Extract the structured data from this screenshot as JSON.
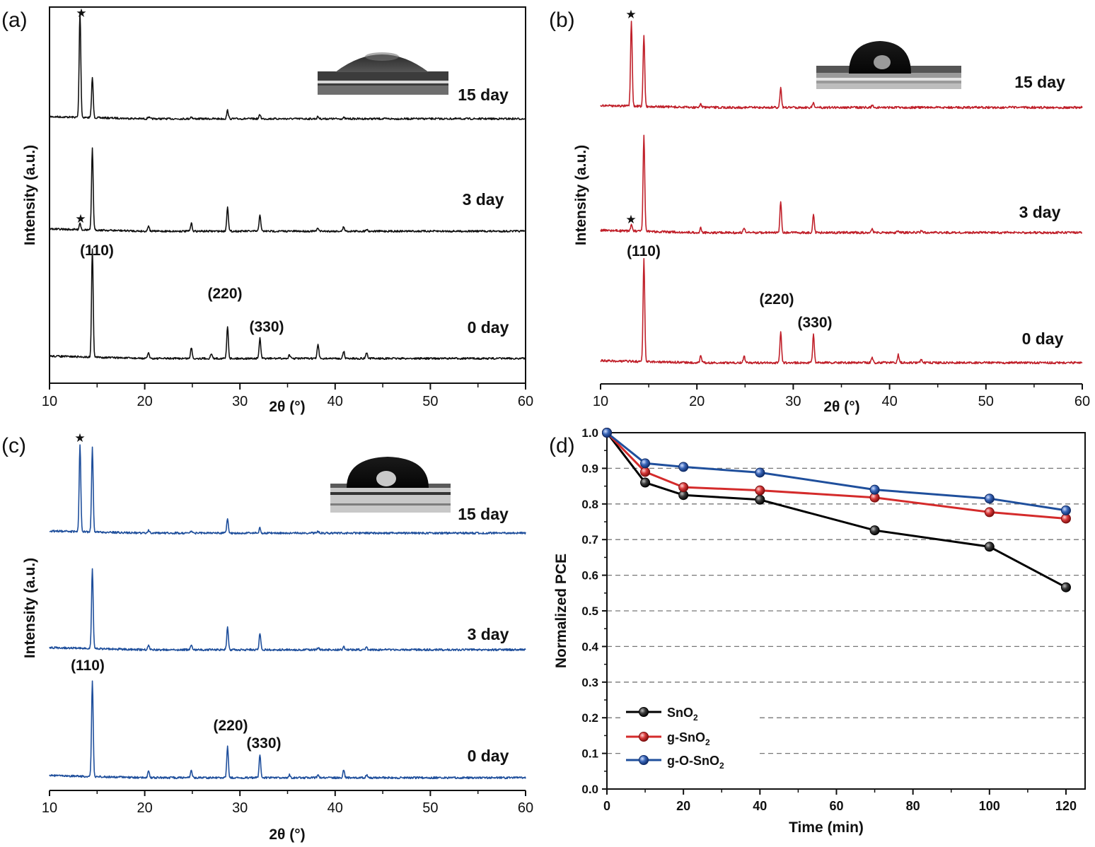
{
  "chart_data": [
    {
      "panel": "(a)",
      "type": "line",
      "xlabel": "2θ (°)",
      "ylabel": "Intensity (a.u.)",
      "xlim": [
        10,
        60
      ],
      "xticks": [
        10,
        20,
        30,
        40,
        50,
        60
      ],
      "color": "#111111",
      "peaks_2theta": [
        13.2,
        14.5,
        20.4,
        24.9,
        28.7,
        32.1,
        38.2,
        40.9,
        43.3
      ],
      "series": [
        {
          "name": "15 day",
          "peaks": [
            [
              13.2,
              1.0
            ],
            [
              14.5,
              0.38
            ],
            [
              20.4,
              0.02
            ],
            [
              24.9,
              0.02
            ],
            [
              28.7,
              0.08
            ],
            [
              32.1,
              0.04
            ],
            [
              38.2,
              0.02
            ],
            [
              40.9,
              0.01
            ]
          ]
        },
        {
          "name": "3 day",
          "peaks": [
            [
              13.2,
              0.06
            ],
            [
              14.5,
              0.72
            ],
            [
              20.4,
              0.05
            ],
            [
              24.9,
              0.07
            ],
            [
              28.7,
              0.22
            ],
            [
              32.1,
              0.15
            ],
            [
              38.2,
              0.03
            ],
            [
              40.9,
              0.04
            ],
            [
              43.3,
              0.02
            ]
          ]
        },
        {
          "name": "0 day",
          "peaks": [
            [
              14.5,
              0.9
            ],
            [
              20.4,
              0.05
            ],
            [
              24.9,
              0.09
            ],
            [
              27.0,
              0.04
            ],
            [
              28.7,
              0.27
            ],
            [
              32.1,
              0.17
            ],
            [
              35.2,
              0.03
            ],
            [
              38.2,
              0.12
            ],
            [
              40.9,
              0.06
            ],
            [
              43.3,
              0.05
            ]
          ]
        }
      ],
      "annotations": {
        "star": "★",
        "p110": "(110)",
        "p220": "(220)",
        "p330": "(330)"
      }
    },
    {
      "panel": "(b)",
      "type": "line",
      "xlabel": "2θ (°)",
      "ylabel": "Intensity (a.u.)",
      "xlim": [
        10,
        60
      ],
      "xticks": [
        10,
        20,
        30,
        40,
        50,
        60
      ],
      "color": "#c0202a",
      "series": [
        {
          "name": "15 day",
          "peaks": [
            [
              13.2,
              0.85
            ],
            [
              14.5,
              0.72
            ],
            [
              20.4,
              0.04
            ],
            [
              28.7,
              0.2
            ],
            [
              32.1,
              0.05
            ],
            [
              38.2,
              0.02
            ]
          ]
        },
        {
          "name": "3 day",
          "peaks": [
            [
              13.2,
              0.06
            ],
            [
              14.5,
              0.85
            ],
            [
              20.4,
              0.04
            ],
            [
              24.9,
              0.04
            ],
            [
              28.7,
              0.27
            ],
            [
              32.1,
              0.16
            ],
            [
              38.2,
              0.03
            ],
            [
              40.9,
              0.02
            ],
            [
              43.3,
              0.02
            ]
          ]
        },
        {
          "name": "0 day",
          "peaks": [
            [
              14.5,
              1.0
            ],
            [
              20.4,
              0.07
            ],
            [
              24.9,
              0.07
            ],
            [
              28.7,
              0.3
            ],
            [
              32.1,
              0.27
            ],
            [
              38.2,
              0.05
            ],
            [
              40.9,
              0.08
            ],
            [
              43.3,
              0.03
            ]
          ]
        }
      ],
      "annotations": {
        "star": "★",
        "p110": "(110)",
        "p220": "(220)",
        "p330": "(330)"
      }
    },
    {
      "panel": "(c)",
      "type": "line",
      "xlabel": "2θ (°)",
      "ylabel": "Intensity (a.u.)",
      "xlim": [
        10,
        60
      ],
      "xticks": [
        10,
        20,
        30,
        40,
        50,
        60
      ],
      "color": "#1f4f9c",
      "series": [
        {
          "name": "15 day",
          "peaks": [
            [
              13.2,
              0.85
            ],
            [
              14.5,
              0.82
            ],
            [
              20.4,
              0.03
            ],
            [
              24.9,
              0.02
            ],
            [
              28.7,
              0.14
            ],
            [
              32.1,
              0.05
            ],
            [
              38.2,
              0.02
            ]
          ]
        },
        {
          "name": "3 day",
          "peaks": [
            [
              14.5,
              0.75
            ],
            [
              20.4,
              0.04
            ],
            [
              24.9,
              0.04
            ],
            [
              28.7,
              0.21
            ],
            [
              32.1,
              0.16
            ],
            [
              38.2,
              0.02
            ],
            [
              40.9,
              0.03
            ],
            [
              43.3,
              0.02
            ]
          ]
        },
        {
          "name": "0 day",
          "peaks": [
            [
              14.5,
              0.9
            ],
            [
              20.4,
              0.07
            ],
            [
              24.9,
              0.07
            ],
            [
              28.7,
              0.29
            ],
            [
              32.1,
              0.22
            ],
            [
              35.2,
              0.03
            ],
            [
              38.2,
              0.03
            ],
            [
              40.9,
              0.07
            ],
            [
              43.3,
              0.03
            ]
          ]
        }
      ],
      "annotations": {
        "star": "★",
        "p110": "(110)",
        "p220": "(220)",
        "p330": "(330)"
      }
    },
    {
      "panel": "(d)",
      "type": "line",
      "xlabel": "Time (min)",
      "ylabel": "Normalized PCE",
      "xlim": [
        0,
        125
      ],
      "ylim": [
        0.0,
        1.0
      ],
      "xticks": [
        0,
        20,
        40,
        60,
        80,
        100,
        120
      ],
      "yticks": [
        "0.0",
        "0.1",
        "0.2",
        "0.3",
        "0.4",
        "0.5",
        "0.6",
        "0.7",
        "0.8",
        "0.9",
        "1.0"
      ],
      "grid": "horizontal dashed",
      "legend": "bottom-left",
      "series": [
        {
          "name": "SnO2",
          "label_main": "SnO",
          "label_sub": "2",
          "color": "#000000",
          "x": [
            0,
            10,
            20,
            40,
            70,
            100,
            120
          ],
          "y": [
            1.0,
            0.86,
            0.825,
            0.812,
            0.726,
            0.68,
            0.566
          ]
        },
        {
          "name": "g-SnO2",
          "label_main": "g-SnO",
          "label_sub": "2",
          "color": "#d42b2b",
          "x": [
            0,
            10,
            20,
            40,
            70,
            100,
            120
          ],
          "y": [
            1.0,
            0.89,
            0.847,
            0.838,
            0.818,
            0.777,
            0.759
          ]
        },
        {
          "name": "g-O-SnO2",
          "label_main": "g-O-SnO",
          "label_sub": "2",
          "color": "#1f4f9c",
          "x": [
            0,
            10,
            20,
            40,
            70,
            100,
            120
          ],
          "y": [
            1.0,
            0.914,
            0.904,
            0.888,
            0.84,
            0.815,
            0.782
          ]
        }
      ]
    }
  ]
}
